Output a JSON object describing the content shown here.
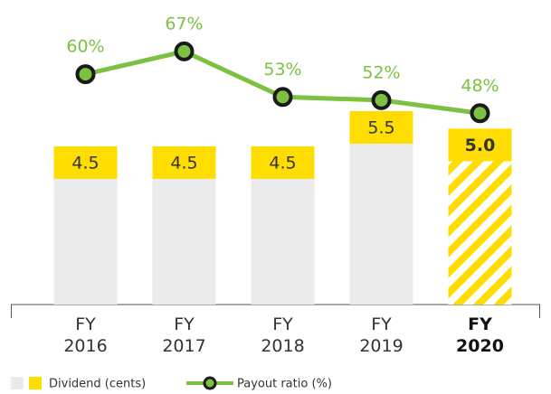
{
  "chart_data": {
    "type": "bar_line",
    "categories": [
      "FY 2016",
      "FY 2017",
      "FY 2018",
      "FY 2019",
      "FY 2020"
    ],
    "highlight_index": 4,
    "series": [
      {
        "name": "Dividend (cents)",
        "color": "#ebebeb",
        "label_color": "#ffdd00",
        "values": [
          4.5,
          4.5,
          4.5,
          5.5,
          5.0
        ],
        "value_labels": [
          "4.5",
          "4.5",
          "4.5",
          "5.5",
          "5.0"
        ]
      },
      {
        "name": "Payout ratio (%)",
        "color": "#7dc142",
        "axis": "y2",
        "values": [
          60,
          67,
          53,
          52,
          48
        ],
        "value_labels": [
          "60%",
          "67%",
          "53%",
          "52%",
          "48%"
        ]
      }
    ],
    "ylim": [
      0,
      8.66
    ],
    "y2lim": [
      -10.8,
      82.8
    ]
  }
}
